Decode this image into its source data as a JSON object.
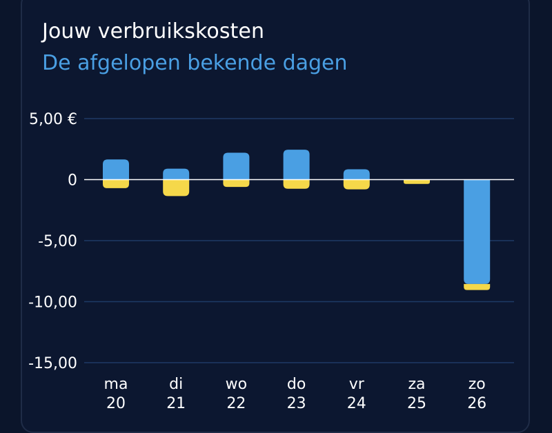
{
  "header": {
    "title": "Jouw verbruikskosten",
    "subtitle": "De afgelopen bekende dagen"
  },
  "colors": {
    "background": "#0c1730",
    "gridline": "#1e3a66",
    "zero_line": "#ffffff",
    "series_blue": "#4a9fe3",
    "series_yellow": "#f5d84a"
  },
  "chart_data": {
    "type": "bar",
    "stacked": true,
    "title": "Jouw verbruikskosten",
    "subtitle": "De afgelopen bekende dagen",
    "categories": [
      "ma\n20",
      "di\n21",
      "wo\n22",
      "do\n23",
      "vr\n24",
      "za\n25",
      "zo\n26"
    ],
    "category_lines": [
      [
        "ma",
        "20"
      ],
      [
        "di",
        "21"
      ],
      [
        "wo",
        "22"
      ],
      [
        "do",
        "23"
      ],
      [
        "vr",
        "24"
      ],
      [
        "za",
        "25"
      ],
      [
        "zo",
        "26"
      ]
    ],
    "ylim": [
      -15,
      5
    ],
    "yticks": [
      5,
      0,
      -5,
      -10,
      -15
    ],
    "ytick_labels": [
      "5,00 €",
      "0",
      "-5,00",
      "-10,00",
      "-15,00"
    ],
    "grid": true,
    "series": [
      {
        "color": "#4a9fe3",
        "values": [
          1.65,
          0.9,
          2.2,
          2.45,
          0.85,
          0,
          -8.55
        ]
      },
      {
        "color": "#f5d84a",
        "values": [
          -0.7,
          -1.35,
          -0.6,
          -0.75,
          -0.8,
          -0.35,
          -0.5
        ]
      }
    ]
  }
}
